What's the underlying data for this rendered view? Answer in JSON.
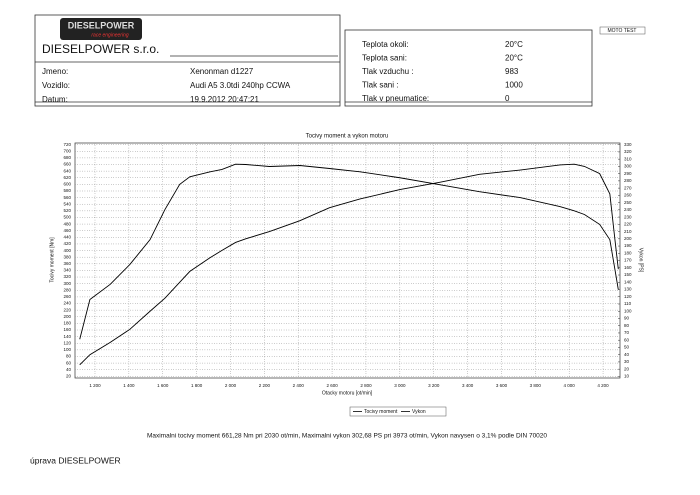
{
  "header": {
    "logo": "DIESELPOWER",
    "logo_sub": "race engineering",
    "company": "DIESELPOWER s.r.o.",
    "badge": "MOTO TEST",
    "info": [
      {
        "label": "Jmeno:",
        "value": "Xenonman d1227"
      },
      {
        "label": "Vozidlo:",
        "value": "Audi A5 3.0tdi 240hp CCWA"
      },
      {
        "label": "Datum:",
        "value": "19.9.2012 20:47:21"
      }
    ],
    "conditions": [
      {
        "label": "Teplota okoli:",
        "value": "20°C"
      },
      {
        "label": "Teplota sani:",
        "value": "20°C"
      },
      {
        "label": "Tlak vzduchu :",
        "value": "983"
      },
      {
        "label": "Tlak sani :",
        "value": "1000"
      },
      {
        "label": "Tlak v pneumatice:",
        "value": "0"
      }
    ]
  },
  "chart_data": {
    "type": "line",
    "title": "Tocivy moment a vykon motoru",
    "x_label": "Otacky motoru [ot/min]",
    "y_label": "Tocivy moment [Nm]",
    "y2_label": "Vykon [PS]",
    "grid": true,
    "grid_style": "dotted",
    "x": [
      1110,
      1170,
      1290,
      1406,
      1525,
      1613,
      1700,
      1760,
      1880,
      1950,
      2030,
      2090,
      2230,
      2410,
      2585,
      2765,
      3000,
      3235,
      3470,
      3710,
      3945,
      4030,
      4090,
      4180,
      4240,
      4270,
      4290
    ],
    "series": [
      {
        "name": "Tocivy moment",
        "color": "#000000",
        "values": [
          132,
          252,
          298,
          358,
          433,
          524,
          600,
          623,
          638,
          645,
          661,
          660,
          654,
          657,
          648,
          638,
          620,
          599,
          578,
          560,
          533,
          520,
          509,
          479,
          433,
          343,
          282
        ]
      },
      {
        "name": "Vykon",
        "color": "#000000",
        "axis": "y2",
        "values": [
          26,
          40,
          57,
          75,
          100,
          118,
          140,
          155,
          174,
          184,
          195,
          200,
          210,
          225,
          243,
          255,
          268,
          278,
          289,
          295,
          302,
          303,
          300,
          290,
          262,
          199,
          158
        ]
      }
    ],
    "xlim": [
      1082,
      4300
    ],
    "xticks": [
      {
        "value": 1200,
        "label": "1 200"
      },
      {
        "value": 1400,
        "label": "1 400"
      },
      {
        "value": 1600,
        "label": "1 600"
      },
      {
        "value": 1800,
        "label": "1 800"
      },
      {
        "value": 2000,
        "label": "2 000"
      },
      {
        "value": 2200,
        "label": "2 200"
      },
      {
        "value": 2400,
        "label": "2 400"
      },
      {
        "value": 2600,
        "label": "2 600"
      },
      {
        "value": 2800,
        "label": "2 800"
      },
      {
        "value": 3000,
        "label": "3 000"
      },
      {
        "value": 3200,
        "label": "3 200"
      },
      {
        "value": 3400,
        "label": "3 400"
      },
      {
        "value": 3600,
        "label": "3 600"
      },
      {
        "value": 3800,
        "label": "3 800"
      },
      {
        "value": 4000,
        "label": "4 000"
      },
      {
        "value": 4200,
        "label": "4 200"
      }
    ],
    "ylim": [
      15,
      725
    ],
    "yticks": [
      20,
      40,
      60,
      80,
      100,
      120,
      140,
      160,
      180,
      200,
      220,
      240,
      260,
      280,
      300,
      320,
      340,
      360,
      380,
      400,
      420,
      440,
      460,
      480,
      500,
      520,
      540,
      560,
      580,
      600,
      620,
      640,
      660,
      680,
      700,
      720
    ],
    "y2lim": [
      7.8,
      332.3
    ],
    "y2ticks": [
      10,
      20,
      30,
      40,
      50,
      60,
      70,
      80,
      90,
      100,
      110,
      120,
      130,
      140,
      150,
      160,
      170,
      180,
      190,
      200,
      210,
      220,
      230,
      240,
      250,
      260,
      270,
      280,
      290,
      300,
      310,
      320,
      330
    ]
  },
  "summary": "Maximalni tocivy moment 661,28 Nm pri 2030 ot/min,  Maximalni vykon 302,68 PS pri 3973 ot/min,  Vykon navysen o 3,1% podle DIN 70020",
  "footer": "úprava DIESELPOWER"
}
